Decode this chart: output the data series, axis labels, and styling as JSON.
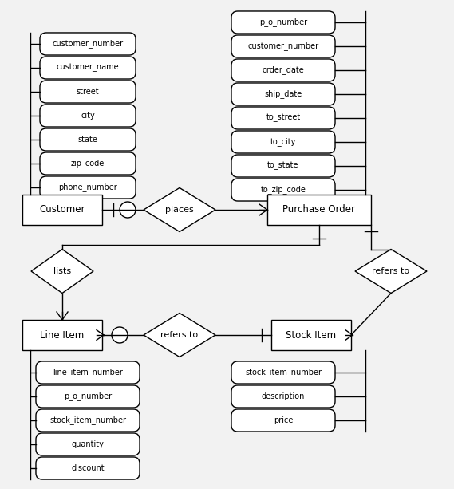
{
  "fig_width": 5.69,
  "fig_height": 6.13,
  "bg_color": "#f2f2f2",
  "line_color": "#000000",
  "fill_color": "#ffffff",
  "customer_attrs": [
    "customer_number",
    "customer_name",
    "street",
    "city",
    "state",
    "zip_code",
    "phone_number"
  ],
  "po_attrs": [
    "p_o_number",
    "customer_number",
    "order_date",
    "ship_date",
    "to_street",
    "to_city",
    "to_state",
    "to_zip_code"
  ],
  "lineitem_attrs": [
    "line_item_number",
    "p_o_number",
    "stock_item_number",
    "quantity",
    "discount"
  ],
  "stockitem_attrs": [
    "stock_item_number",
    "description",
    "price"
  ]
}
